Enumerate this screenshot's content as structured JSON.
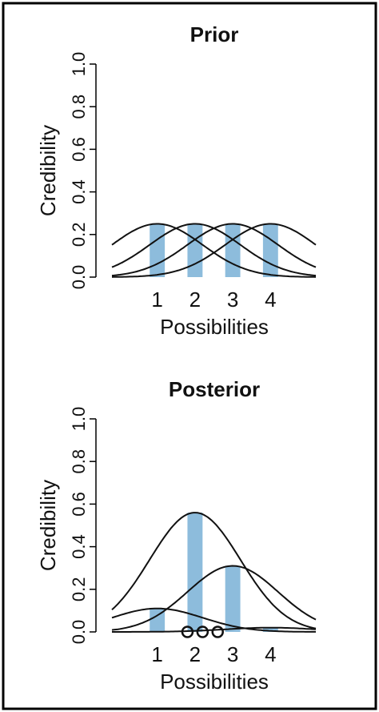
{
  "chart_data": [
    {
      "type": "bar",
      "title": "Prior",
      "x_label": "Possibilities",
      "y_label": "Credibility",
      "x": [
        1,
        2,
        3,
        4
      ],
      "values": [
        0.25,
        0.25,
        0.25,
        0.25
      ],
      "color": "#8dbcdc",
      "xlim": [
        -0.2,
        5.2
      ],
      "xticks": [
        1,
        2,
        3,
        4
      ],
      "ylim": [
        0,
        1
      ],
      "yticks": [
        {
          "value": 0,
          "label": "0.0"
        },
        0.2,
        0.4,
        0.6,
        0.8,
        {
          "value": 1,
          "label": "1.0"
        }
      ]
    },
    {
      "type": "bar",
      "title": "Posterior",
      "x_label": "Possibilities",
      "y_label": "Credibility",
      "x": [
        1,
        2,
        3,
        4
      ],
      "values": [
        0.11,
        0.56,
        0.31,
        0.02
      ],
      "color": "#8dbcdc",
      "points": {
        "x": [
          1.8,
          2.2,
          2.6
        ],
        "y": [
          0,
          0,
          0
        ]
      },
      "xlim": [
        -0.2,
        5.2
      ],
      "xticks": [
        1,
        2,
        3,
        4
      ],
      "ylim": [
        0,
        1
      ],
      "yticks": [
        {
          "value": 0,
          "label": "0.0"
        },
        0.2,
        0.4,
        0.6,
        0.8,
        {
          "value": 1,
          "label": "1.0"
        }
      ]
    }
  ]
}
